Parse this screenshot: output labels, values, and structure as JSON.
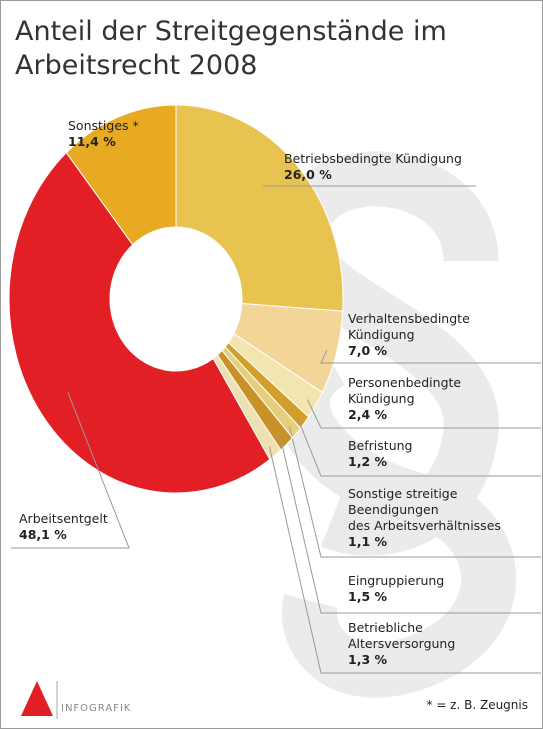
{
  "chart_data": {
    "type": "donut",
    "title": "Anteil der Streitgegenstände im\nArbeitsrecht 2008",
    "categories": [
      "Betriebsbedingte Kündigung",
      "Verhaltensbedingte\n Kündigung",
      "Personenbedingte\nKündigung",
      "Befristung",
      "Sonstige streitige\nBeendigungen\ndes Arbeitsverhältnisses",
      "Eingruppierung",
      "Betriebliche\nAltersversorgung",
      "Arbeitsentgelt",
      "Sonstiges *"
    ],
    "values": [
      26.0,
      7.0,
      2.4,
      1.2,
      1.1,
      1.5,
      1.3,
      48.1,
      11.4
    ],
    "value_labels": [
      "26,0 %",
      "7,0 %",
      "2,4 %",
      "1,2 %",
      "1,1 %",
      "1,5 %",
      "1,3 %",
      "48,1 %",
      "11,4 %"
    ],
    "colors": [
      "#e8c350",
      "#f3d697",
      "#f2e5af",
      "#d39f2c",
      "#e6cf7c",
      "#c99128",
      "#ede0b3",
      "#e31f26",
      "#e8aa22"
    ],
    "footnote": "* = z. B. Zeugnis",
    "source_label": "INFOGRAFIK"
  }
}
